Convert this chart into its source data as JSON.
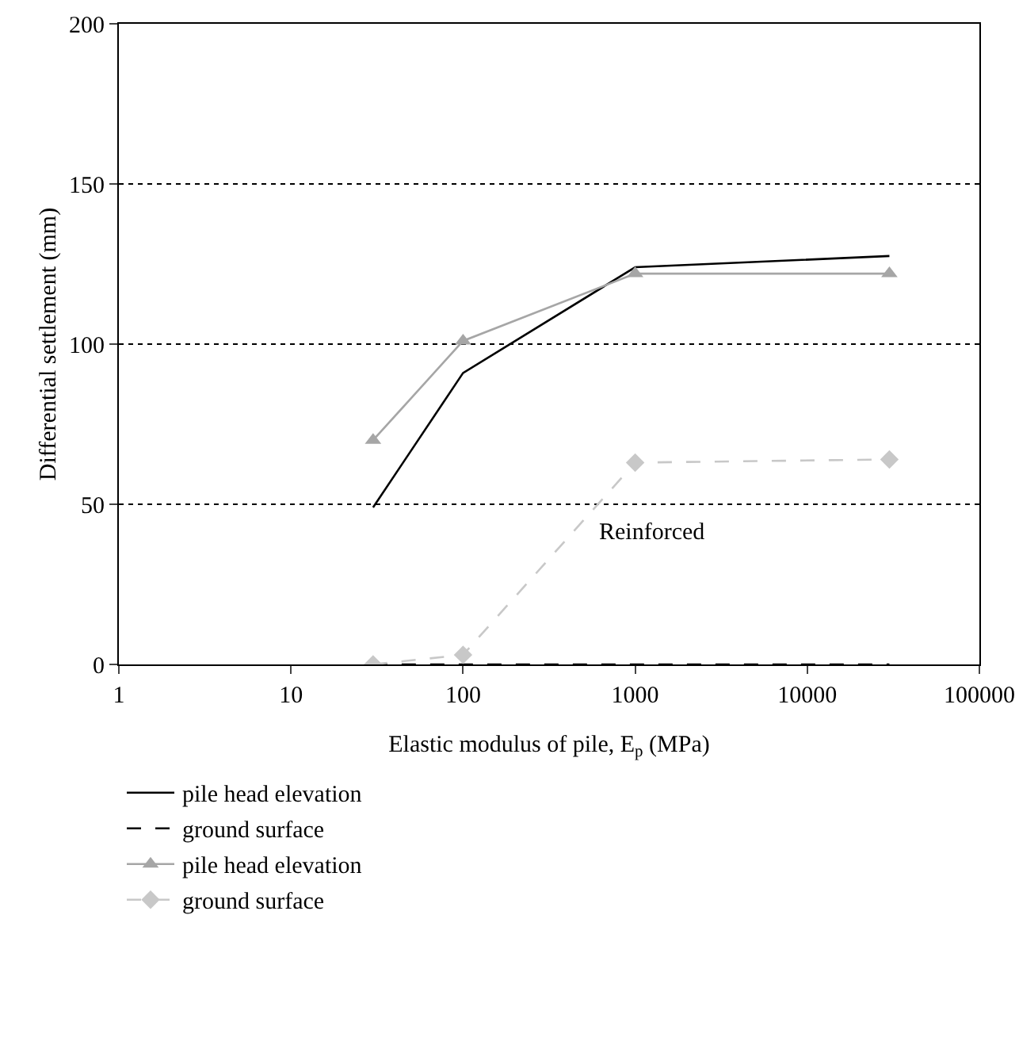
{
  "chart_data": {
    "type": "line",
    "xlabel": "Elastic modulus of pile, E$_{p}$ (MPa)",
    "ylabel": "Differential settlement (mm)",
    "x": [
      30,
      100,
      1000,
      30000
    ],
    "log": "x",
    "xlim": [
      1,
      100000
    ],
    "xticks": [
      1,
      10,
      100,
      1000,
      10000,
      100000
    ],
    "ylim": [
      0,
      200
    ],
    "yticks": [
      0,
      50,
      100,
      150,
      200
    ],
    "grid": "y",
    "legend": "bottom",
    "annotations": [
      "Reinforced"
    ],
    "series": [
      {
        "name": "pile head elevation",
        "color": "#000000",
        "line_style": "solid",
        "marker": "none",
        "values": [
          49,
          91,
          124,
          127.5
        ]
      },
      {
        "name": "ground surface",
        "color": "#000000",
        "line_style": "dashed",
        "marker": "none",
        "values": [
          0,
          0,
          0,
          0
        ]
      },
      {
        "name": "pile head elevation",
        "color": "#a6a6a6",
        "line_style": "solid",
        "marker": "triangle",
        "values": [
          70,
          101,
          122,
          122
        ]
      },
      {
        "name": "ground surface",
        "color": "#c8c8c8",
        "line_style": "dashed",
        "marker": "diamond",
        "values": [
          0,
          3,
          63,
          64
        ]
      }
    ]
  }
}
